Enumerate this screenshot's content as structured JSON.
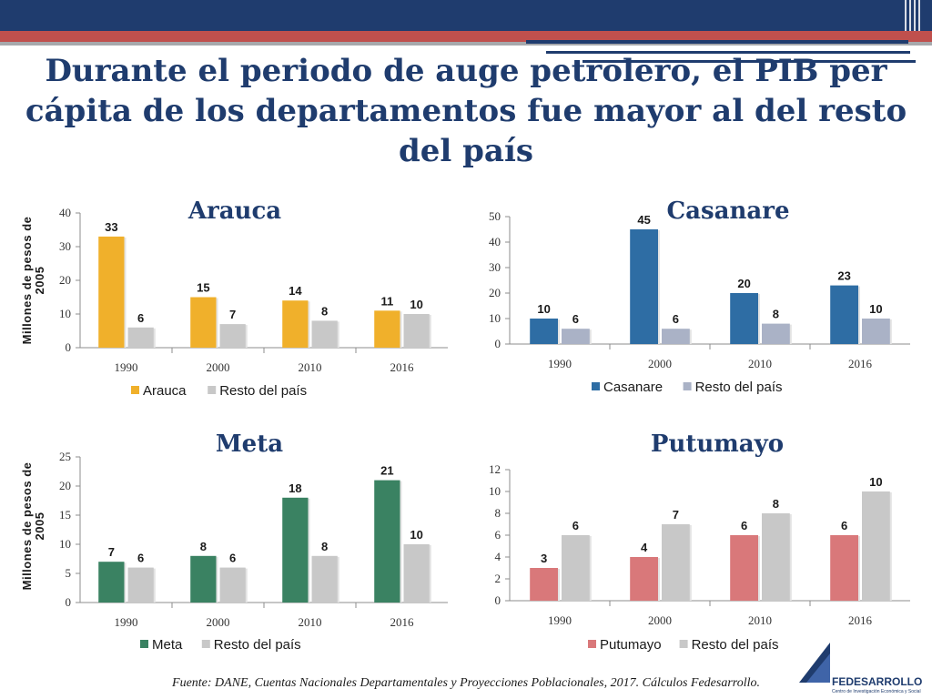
{
  "slide": {
    "title": "Durante el periodo de auge petrolero, el PIB per cápita de los departamentos fue mayor al del resto del país",
    "source": "Fuente: DANE, Cuentas Nacionales Departamentales y Proyecciones Poblacionales, 2017. Cálculos Fedesarrollo.",
    "logo_text": "FEDESARROLLO",
    "logo_subtext": "Centro de Investigación Económica y Social"
  },
  "colors": {
    "header_navy": "#1f3c6e",
    "header_red": "#c0504d",
    "arauca": "#f0b02b",
    "casanare": "#2e6da4",
    "meta": "#3a8262",
    "putumayo": "#d9787a",
    "resto": "#c8c8c8",
    "resto_casanare": "#aab2c6"
  },
  "chart_data": [
    {
      "type": "bar",
      "title": "Arauca",
      "ylabel": "Millones de pesos de 2005",
      "categories": [
        "1990",
        "2000",
        "2010",
        "2016"
      ],
      "ylim": [
        0,
        40
      ],
      "yticks": [
        0,
        10,
        20,
        30,
        40
      ],
      "series": [
        {
          "name": "Arauca",
          "values": [
            33,
            15,
            14,
            11
          ],
          "labels": [
            "33",
            "15",
            "14",
            "11"
          ]
        },
        {
          "name": "Resto del país",
          "values": [
            6,
            7,
            8,
            10
          ],
          "labels": [
            "6",
            "7",
            "8",
            "10"
          ]
        }
      ],
      "legend": "bottom"
    },
    {
      "type": "bar",
      "title": "Casanare",
      "ylabel": "",
      "categories": [
        "1990",
        "2000",
        "2010",
        "2016"
      ],
      "ylim": [
        0,
        50
      ],
      "yticks": [
        0,
        10,
        20,
        30,
        40,
        50
      ],
      "series": [
        {
          "name": "Casanare",
          "values": [
            10,
            45,
            20,
            23
          ],
          "labels": [
            "10",
            "45",
            "20",
            "23"
          ]
        },
        {
          "name": "Resto del país",
          "values": [
            6,
            6,
            8,
            10
          ],
          "labels": [
            "6",
            "6",
            "8",
            "10"
          ]
        }
      ],
      "legend": "bottom"
    },
    {
      "type": "bar",
      "title": "Meta",
      "ylabel": "Millones de pesos de 2005",
      "categories": [
        "1990",
        "2000",
        "2010",
        "2016"
      ],
      "ylim": [
        0,
        25
      ],
      "yticks": [
        0,
        5,
        10,
        15,
        20,
        25
      ],
      "series": [
        {
          "name": "Meta",
          "values": [
            7,
            8,
            18,
            21
          ],
          "labels": [
            "7",
            "8",
            "18",
            "21"
          ]
        },
        {
          "name": "Resto del país",
          "values": [
            6,
            6,
            8,
            10
          ],
          "labels": [
            "6",
            "6",
            "8",
            "10"
          ]
        }
      ],
      "legend": "bottom"
    },
    {
      "type": "bar",
      "title": "Putumayo",
      "ylabel": "",
      "categories": [
        "1990",
        "2000",
        "2010",
        "2016"
      ],
      "ylim": [
        0,
        12
      ],
      "yticks": [
        0,
        2,
        4,
        6,
        8,
        10,
        12
      ],
      "series": [
        {
          "name": "Putumayo",
          "values": [
            3,
            4,
            6,
            6
          ],
          "labels": [
            "3",
            "4",
            "6",
            "6"
          ]
        },
        {
          "name": "Resto del país",
          "values": [
            6,
            7,
            8,
            10
          ],
          "labels": [
            "6",
            "7",
            "8",
            "10"
          ]
        }
      ],
      "legend": "bottom"
    }
  ]
}
